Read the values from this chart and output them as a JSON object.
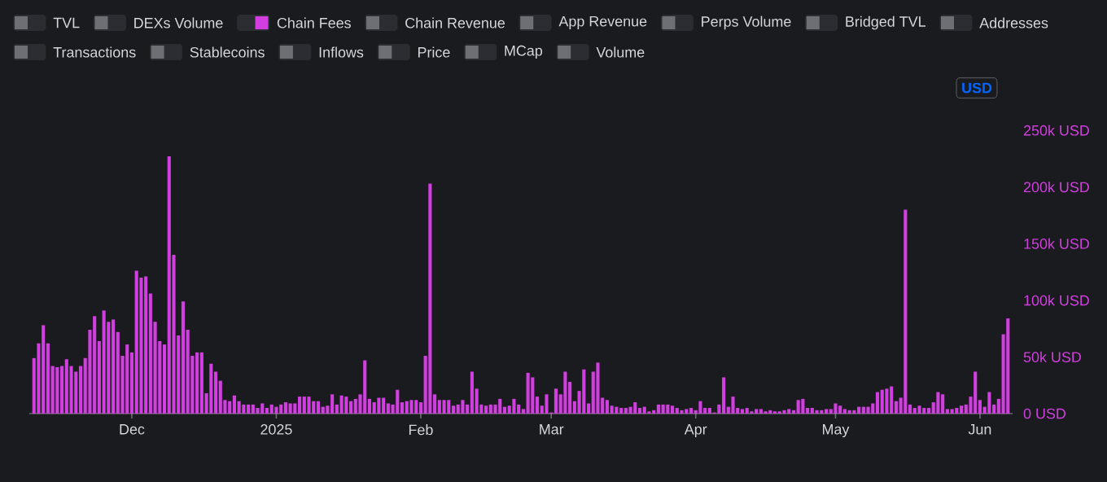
{
  "chart_data": {
    "type": "bar",
    "annotations": [
      "TVL",
      "DEXs Volume",
      "Chain Revenue",
      "App Revenue",
      "Perps Volume",
      "Bridged TVL",
      "Addresses",
      "Transactions",
      "Stablecoins",
      "Inflows",
      "Price",
      "MCap",
      "Volume",
      "USD"
    ],
    "x": [
      "2024-11-10",
      "2024-11-11",
      "2024-11-12",
      "2024-11-13",
      "2024-11-14",
      "2024-11-15",
      "2024-11-16",
      "2024-11-17",
      "2024-11-18",
      "2024-11-19",
      "2024-11-20",
      "2024-11-21",
      "2024-11-22",
      "2024-11-23",
      "2024-11-24",
      "2024-11-25",
      "2024-11-26",
      "2024-11-27",
      "2024-11-28",
      "2024-11-29",
      "2024-11-30",
      "2024-12-01",
      "2024-12-02",
      "2024-12-03",
      "2024-12-04",
      "2024-12-05",
      "2024-12-06",
      "2024-12-07",
      "2024-12-08",
      "2024-12-09",
      "2024-12-10",
      "2024-12-11",
      "2024-12-12",
      "2024-12-13",
      "2024-12-14",
      "2024-12-15",
      "2024-12-16",
      "2024-12-17",
      "2024-12-18",
      "2024-12-19",
      "2024-12-20",
      "2024-12-21",
      "2024-12-22",
      "2024-12-23",
      "2024-12-24",
      "2024-12-25",
      "2024-12-26",
      "2024-12-27",
      "2024-12-28",
      "2024-12-29",
      "2024-12-30",
      "2024-12-31",
      "2025-01-01",
      "2025-01-02",
      "2025-01-03",
      "2025-01-04",
      "2025-01-05",
      "2025-01-06",
      "2025-01-07",
      "2025-01-08",
      "2025-01-09",
      "2025-01-10",
      "2025-01-11",
      "2025-01-12",
      "2025-01-13",
      "2025-01-14",
      "2025-01-15",
      "2025-01-16",
      "2025-01-17",
      "2025-01-18",
      "2025-01-19",
      "2025-01-20",
      "2025-01-21",
      "2025-01-22",
      "2025-01-23",
      "2025-01-24",
      "2025-01-25",
      "2025-01-26",
      "2025-01-27",
      "2025-01-28",
      "2025-01-29",
      "2025-01-30",
      "2025-01-31",
      "2025-02-01",
      "2025-02-02",
      "2025-02-03",
      "2025-02-04",
      "2025-02-05",
      "2025-02-06",
      "2025-02-07",
      "2025-02-08",
      "2025-02-09",
      "2025-02-10",
      "2025-02-11",
      "2025-02-12",
      "2025-02-13",
      "2025-02-14",
      "2025-02-15",
      "2025-02-16",
      "2025-02-17",
      "2025-02-18",
      "2025-02-19",
      "2025-02-20",
      "2025-02-21",
      "2025-02-22",
      "2025-02-23",
      "2025-02-24",
      "2025-02-25",
      "2025-02-26",
      "2025-02-27",
      "2025-02-28",
      "2025-03-01",
      "2025-03-02",
      "2025-03-03",
      "2025-03-04",
      "2025-03-05",
      "2025-03-06",
      "2025-03-07",
      "2025-03-08",
      "2025-03-09",
      "2025-03-10",
      "2025-03-11",
      "2025-03-12",
      "2025-03-13",
      "2025-03-14",
      "2025-03-15",
      "2025-03-16",
      "2025-03-17",
      "2025-03-18",
      "2025-03-19",
      "2025-03-20",
      "2025-03-21",
      "2025-03-22",
      "2025-03-23",
      "2025-03-24",
      "2025-03-25",
      "2025-03-26",
      "2025-03-27",
      "2025-03-28",
      "2025-03-29",
      "2025-03-30",
      "2025-03-31",
      "2025-04-01",
      "2025-04-02",
      "2025-04-03",
      "2025-04-04",
      "2025-04-05",
      "2025-04-06",
      "2025-04-07",
      "2025-04-08",
      "2025-04-09",
      "2025-04-10",
      "2025-04-11",
      "2025-04-12",
      "2025-04-13",
      "2025-04-14",
      "2025-04-15",
      "2025-04-16",
      "2025-04-17",
      "2025-04-18",
      "2025-04-19",
      "2025-04-20",
      "2025-04-21",
      "2025-04-22",
      "2025-04-23",
      "2025-04-24",
      "2025-04-25",
      "2025-04-26",
      "2025-04-27",
      "2025-04-28",
      "2025-04-29",
      "2025-04-30",
      "2025-05-01",
      "2025-05-02",
      "2025-05-03",
      "2025-05-04",
      "2025-05-05",
      "2025-05-06",
      "2025-05-07",
      "2025-05-08",
      "2025-05-09",
      "2025-05-10",
      "2025-05-11",
      "2025-05-12",
      "2025-05-13",
      "2025-05-14",
      "2025-05-15",
      "2025-05-16",
      "2025-05-17",
      "2025-05-18",
      "2025-05-19",
      "2025-05-20",
      "2025-05-21",
      "2025-05-22",
      "2025-05-23",
      "2025-05-24",
      "2025-05-25",
      "2025-05-26",
      "2025-05-27",
      "2025-05-28",
      "2025-05-29",
      "2025-05-30",
      "2025-05-31",
      "2025-06-01",
      "2025-06-02",
      "2025-06-03",
      "2025-06-04",
      "2025-06-05",
      "2025-06-06",
      "2025-06-07"
    ],
    "series": [
      {
        "name": "Chain Fees",
        "color": "#d23fe0",
        "values": [
          49000,
          62000,
          78000,
          62000,
          42000,
          41000,
          42000,
          48000,
          42000,
          37000,
          42000,
          49000,
          74000,
          86000,
          64000,
          91000,
          81000,
          83000,
          72000,
          51000,
          61000,
          54000,
          126000,
          120000,
          121000,
          106000,
          81000,
          64000,
          61000,
          227000,
          140000,
          69000,
          99000,
          74000,
          51000,
          54000,
          54000,
          18000,
          44000,
          37000,
          29000,
          12000,
          11000,
          16000,
          11000,
          8000,
          8000,
          8000,
          5000,
          9000,
          5000,
          8000,
          6000,
          8000,
          10000,
          9000,
          9000,
          15000,
          15000,
          15000,
          11000,
          11000,
          6000,
          7000,
          17000,
          8000,
          16000,
          15000,
          11000,
          13000,
          17000,
          47000,
          13000,
          10000,
          14000,
          14000,
          9000,
          8000,
          21000,
          10000,
          11000,
          12000,
          12000,
          10000,
          51000,
          203000,
          17000,
          12000,
          12000,
          12000,
          7000,
          8000,
          12000,
          8000,
          37000,
          22000,
          8000,
          7000,
          8000,
          8000,
          13000,
          6000,
          7000,
          13000,
          8000,
          4000,
          36000,
          32000,
          15000,
          7000,
          17000,
          1000,
          22000,
          17000,
          37000,
          28000,
          11000,
          20000,
          39000,
          9000,
          37000,
          45000,
          14000,
          12000,
          7000,
          6000,
          5000,
          5000,
          6000,
          10000,
          5000,
          6000,
          2000,
          3000,
          8000,
          8000,
          8000,
          7000,
          5000,
          3000,
          4000,
          5000,
          3000,
          11000,
          5000,
          5000,
          1000,
          8000,
          32000,
          6000,
          15000,
          5000,
          4000,
          5000,
          2000,
          4000,
          4000,
          2000,
          3000,
          2000,
          2000,
          3000,
          4000,
          3000,
          12000,
          13000,
          5000,
          5000,
          3000,
          3000,
          4000,
          4000,
          9000,
          7000,
          4000,
          3000,
          3000,
          6000,
          6000,
          6000,
          9000,
          19000,
          21000,
          22000,
          24000,
          11000,
          14000,
          180000,
          8000,
          5000,
          7000,
          5000,
          5000,
          10000,
          19000,
          17000,
          4000,
          4000,
          5000,
          7000,
          8000,
          15000,
          37000,
          12000,
          6000,
          19000,
          8000,
          13000,
          70000,
          84000
        ]
      }
    ],
    "xlim": [
      "2024-11-09",
      "2025-06-08"
    ],
    "xticks": [
      {
        "value": "2024-12-01",
        "label": "Dec"
      },
      {
        "value": "2025-01-01",
        "label": "2025"
      },
      {
        "value": "2025-02-01",
        "label": "Feb"
      },
      {
        "value": "2025-03-01",
        "label": "Mar"
      },
      {
        "value": "2025-04-01",
        "label": "Apr"
      },
      {
        "value": "2025-05-01",
        "label": "May"
      },
      {
        "value": "2025-06-01",
        "label": "Jun"
      }
    ],
    "ylim": [
      0,
      250000
    ],
    "yticks": [
      {
        "value": 0,
        "label": "0 USD"
      },
      {
        "value": 50000,
        "label": "50k USD"
      },
      {
        "value": 100000,
        "label": "100k USD"
      },
      {
        "value": 150000,
        "label": "150k USD"
      },
      {
        "value": 200000,
        "label": "200k USD"
      },
      {
        "value": 250000,
        "label": "250k USD"
      }
    ],
    "legend": "top left"
  }
}
